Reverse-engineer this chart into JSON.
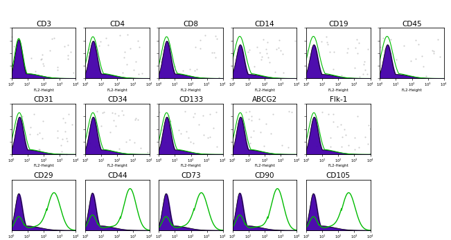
{
  "row1_labels": [
    "CD3",
    "CD4",
    "CD8",
    "CD14",
    "CD19",
    "CD45"
  ],
  "row2_labels": [
    "CD31",
    "CD34",
    "CD133",
    "ABCG2",
    "Flk-1"
  ],
  "row3_labels": [
    "CD29",
    "CD44",
    "CD73",
    "CD90",
    "CD105"
  ],
  "xlabel": "FL2-Height",
  "bg_color": "#ffffff",
  "purple_color": "#4400aa",
  "green_color": "#00bb00",
  "black_color": "#111111",
  "title_fontsize": 7.5,
  "tick_fontsize": 3.8,
  "xlabel_fontsize": 4.0,
  "row1_ncols": 6,
  "row2_ncols": 5,
  "row3_ncols": 5,
  "panels": {
    "CD3": {
      "type": "neg_only"
    },
    "CD4": {
      "type": "neg_green_wider"
    },
    "CD8": {
      "type": "neg_green_wider"
    },
    "CD14": {
      "type": "neg_green_taller"
    },
    "CD19": {
      "type": "neg_green_taller"
    },
    "CD45": {
      "type": "neg_green_taller"
    },
    "CD31": {
      "type": "neg_green_wider"
    },
    "CD34": {
      "type": "neg_green_wider"
    },
    "CD133": {
      "type": "neg_green_wider"
    },
    "ABCG2": {
      "type": "neg_green_wider"
    },
    "Flk-1": {
      "type": "neg_green_wider"
    },
    "CD29": {
      "type": "pos_split"
    },
    "CD44": {
      "type": "pos_split_tall"
    },
    "CD73": {
      "type": "pos_split"
    },
    "CD90": {
      "type": "pos_split_tall"
    },
    "CD105": {
      "type": "pos_split"
    }
  }
}
